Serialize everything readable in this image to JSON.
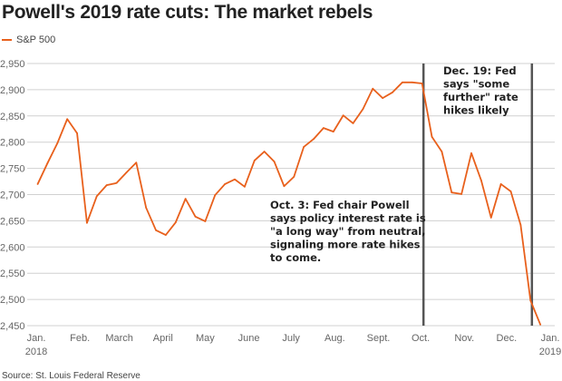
{
  "title": "Powell's 2019 rate cuts: The market rebels",
  "source": "Source: St. Louis Federal Reserve",
  "colors": {
    "series": "#e8601c",
    "event_line": "#555555",
    "grid": "#d0d0d0"
  },
  "chart_data": {
    "type": "line",
    "title": "Powell's 2019 rate cuts: The market rebels",
    "xlabel": "",
    "ylabel": "",
    "ylim": [
      2450,
      2950
    ],
    "yticks": [
      "2,950",
      "2,900",
      "2,850",
      "2,800",
      "2,750",
      "2,700",
      "2,650",
      "2,600",
      "2,550",
      "2,500",
      "2,450"
    ],
    "xticks": [
      {
        "date": "2018-01-01",
        "label": "Jan.",
        "sub": "2018"
      },
      {
        "date": "2018-02-01",
        "label": "Feb.",
        "sub": ""
      },
      {
        "date": "2018-03-01",
        "label": "March",
        "sub": ""
      },
      {
        "date": "2018-04-01",
        "label": "April",
        "sub": ""
      },
      {
        "date": "2018-05-01",
        "label": "May",
        "sub": ""
      },
      {
        "date": "2018-06-01",
        "label": "June",
        "sub": ""
      },
      {
        "date": "2018-07-01",
        "label": "July",
        "sub": ""
      },
      {
        "date": "2018-08-01",
        "label": "Aug.",
        "sub": ""
      },
      {
        "date": "2018-09-01",
        "label": "Sept.",
        "sub": ""
      },
      {
        "date": "2018-10-01",
        "label": "Oct.",
        "sub": ""
      },
      {
        "date": "2018-11-01",
        "label": "Nov.",
        "sub": ""
      },
      {
        "date": "2018-12-01",
        "label": "Dec.",
        "sub": ""
      },
      {
        "date": "2019-01-01",
        "label": "Jan.",
        "sub": "2019"
      }
    ],
    "grid": true,
    "legend": "top-left",
    "series": [
      {
        "name": "S&P 500",
        "start_date": "2018-01-02",
        "frequency": "weekly",
        "values": [
          2720,
          2760,
          2798,
          2844,
          2817,
          2646,
          2697,
          2718,
          2722,
          2742,
          2761,
          2675,
          2632,
          2623,
          2647,
          2692,
          2658,
          2649,
          2699,
          2720,
          2729,
          2715,
          2765,
          2782,
          2763,
          2716,
          2734,
          2791,
          2806,
          2827,
          2820,
          2851,
          2836,
          2863,
          2902,
          2884,
          2895,
          2914,
          2914,
          2912,
          2810,
          2782,
          2704,
          2701,
          2779,
          2727,
          2656,
          2720,
          2706,
          2642,
          2498,
          2452
        ]
      }
    ],
    "annotations": [
      {
        "date": "2018-10-03",
        "text": [
          "Oct. 3: Fed chair Powell",
          "says policy interest rate is",
          "\"a long way\" from neutral,",
          "signaling more rate hikes",
          "to come."
        ]
      },
      {
        "date": "2018-12-19",
        "text": [
          "Dec. 19: Fed",
          "says \"some",
          "further\" rate",
          "hikes likely"
        ]
      }
    ]
  }
}
